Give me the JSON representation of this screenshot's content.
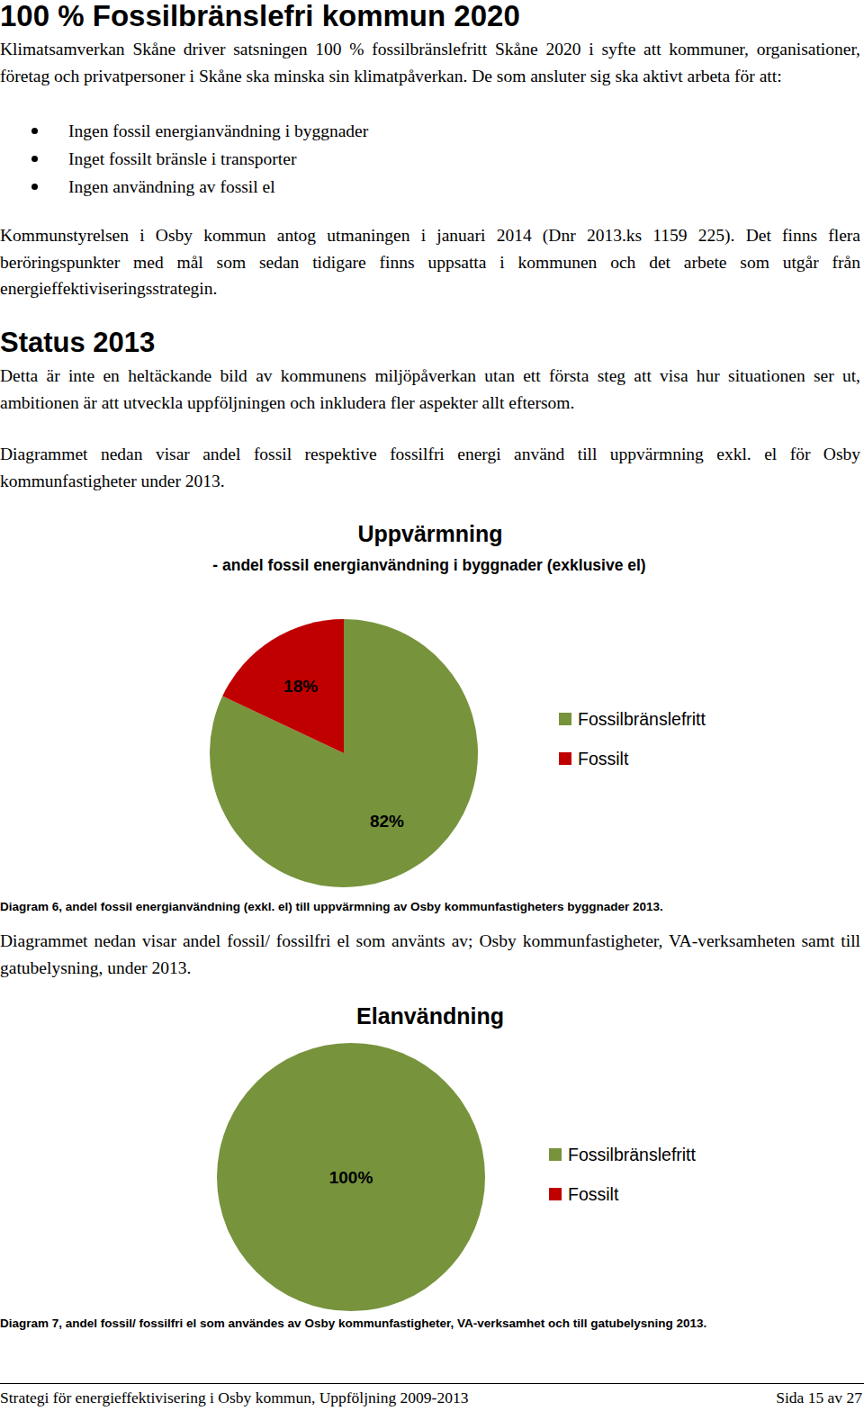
{
  "heading": "100 % Fossilbränslefri kommun 2020",
  "intro": "Klimatsamverkan Skåne driver satsningen 100 % fossilbränslefritt Skåne 2020 i syfte att kommuner, organisationer, företag och privatpersoner i Skåne ska minska sin klimatpåverkan. De som ansluter sig ska aktivt arbeta för att:",
  "bullets": [
    "Ingen fossil energianvändning i byggnader",
    "Inget fossilt bränsle i transporter",
    "Ingen användning av fossil el"
  ],
  "decision": "Kommunstyrelsen i Osby kommun antog utmaningen i januari 2014 (Dnr 2013.ks 1159 225). Det finns flera beröringspunkter med mål som sedan tidigare finns uppsatta i kommunen och det arbete som utgår från energieffektiviseringsstrategin.",
  "status_heading": "Status 2013",
  "status_text": "Detta är inte en heltäckande bild av kommunens miljöpåverkan utan ett första steg att visa hur situationen ser ut, ambitionen är att utveckla uppföljningen och inkludera fler aspekter allt eftersom.",
  "chart_data": [
    {
      "type": "pie",
      "description": "Diagrammet nedan visar andel fossil respektive fossilfri energi använd till uppvärmning exkl. el för Osby kommunfastigheter under 2013.",
      "title": "Uppvärmning",
      "subtitle": "- andel fossil energianvändning i byggnader (exklusive el)",
      "categories": [
        "Fossilbränslefritt",
        "Fossilt"
      ],
      "values": [
        82,
        18
      ],
      "value_labels": [
        "82%",
        "18%"
      ],
      "colors": [
        "#77933c",
        "#c00000"
      ],
      "data_labels": true,
      "legend": "right",
      "caption": "Diagram 6, andel fossil energianvändning (exkl. el) till uppvärmning av Osby kommunfastigheters byggnader 2013."
    },
    {
      "type": "pie",
      "description": "Diagrammet nedan visar andel fossil/ fossilfri el som använts av; Osby kommunfastigheter, VA-verksamheten samt till gatubelysning, under 2013.",
      "title": "Elanvändning",
      "categories": [
        "Fossilbränslefritt",
        "Fossilt"
      ],
      "values": [
        100,
        0
      ],
      "value_labels": [
        "100%",
        null
      ],
      "colors": [
        "#77933c",
        "#c00000"
      ],
      "data_labels": true,
      "legend": "right",
      "caption": "Diagram 7, andel fossil/ fossilfri el som användes av Osby kommunfastigheter, VA-verksamhet och till gatubelysning 2013."
    }
  ],
  "footer": {
    "left": "Strategi för energieffektivisering i Osby kommun, Uppföljning 2009-2013",
    "right": "Sida 15 av 27"
  }
}
